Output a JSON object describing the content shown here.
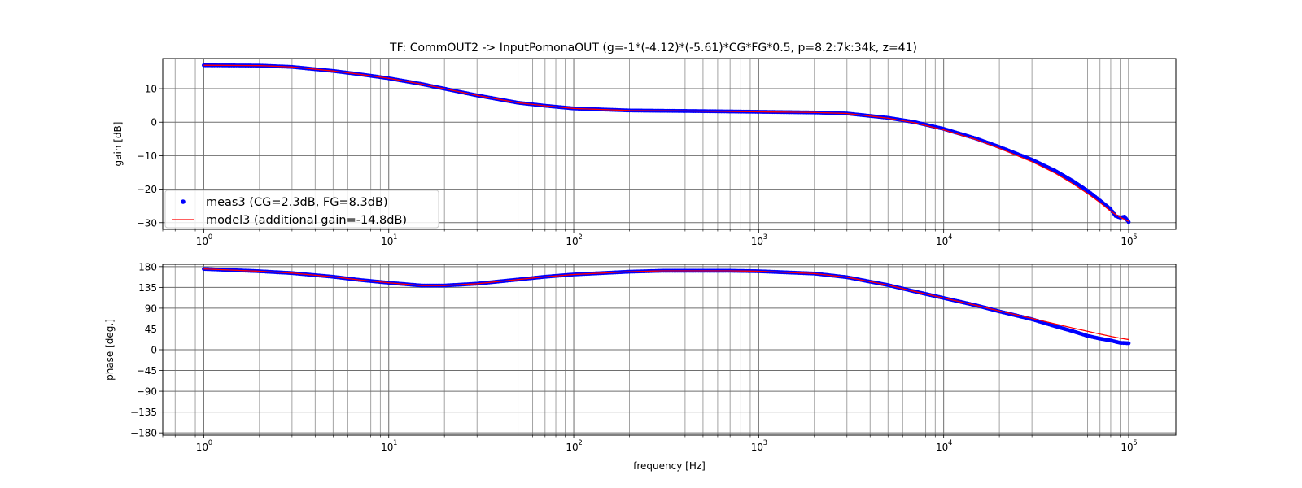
{
  "chart_data": [
    {
      "type": "line",
      "title": "TF: CommOUT2 -> InputPomonaOUT (g=-1*(-4.12)*(-5.61)*CG*FG*0.5, p=8.2:7k:34k, z=41)",
      "xlabel": "",
      "ylabel": "gain [dB]",
      "xscale": "log",
      "xlim": [
        0.6,
        180000
      ],
      "ylim": [
        -32,
        19
      ],
      "yticks": [
        10,
        0,
        -10,
        -20,
        -30
      ],
      "ytick_labels": [
        "10",
        "0",
        "−10",
        "−20",
        "−30"
      ],
      "xtick_labels": [
        "10",
        "10",
        "10",
        "10",
        "10",
        "10"
      ],
      "xtick_exponents": [
        "0",
        "1",
        "2",
        "3",
        "4",
        "5"
      ],
      "grid": true,
      "legend_position": "lower-left",
      "legend": [
        "meas3 (CG=2.3dB, FG=8.3dB)",
        "model3 (additional gain=-14.8dB)"
      ],
      "series": [
        {
          "name": "meas3 (CG=2.3dB, FG=8.3dB)",
          "style": "points",
          "color": "#0000ff",
          "x": [
            1,
            2,
            3,
            5,
            7,
            10,
            15,
            20,
            30,
            50,
            70,
            100,
            200,
            500,
            1000,
            2000,
            3000,
            5000,
            7000,
            10000,
            15000,
            20000,
            30000,
            40000,
            50000,
            60000,
            70000,
            80000,
            85000,
            90000,
            95000,
            100000
          ],
          "y": [
            17,
            16.9,
            16.5,
            15.3,
            14.3,
            13.1,
            11.4,
            10,
            8,
            5.8,
            4.9,
            4.1,
            3.5,
            3.3,
            3.1,
            2.9,
            2.6,
            1.3,
            0,
            -2,
            -4.9,
            -7.4,
            -11.2,
            -14.5,
            -17.6,
            -20.5,
            -23.4,
            -26,
            -28,
            -28.5,
            -28.2,
            -29.8
          ]
        },
        {
          "name": "model3 (additional gain=-14.8dB)",
          "style": "line",
          "color": "#ff0000",
          "x": [
            1,
            2,
            3,
            5,
            7,
            10,
            15,
            20,
            30,
            50,
            70,
            100,
            200,
            500,
            1000,
            2000,
            3000,
            5000,
            7000,
            10000,
            15000,
            20000,
            30000,
            40000,
            50000,
            60000,
            70000,
            80000,
            90000,
            100000
          ],
          "y": [
            17,
            16.9,
            16.5,
            15.3,
            14.3,
            13.1,
            11.4,
            10,
            8,
            5.8,
            4.9,
            4.1,
            3.5,
            3.3,
            3.1,
            2.9,
            2.6,
            1.2,
            -0.2,
            -2.3,
            -5.2,
            -7.8,
            -11.8,
            -15.2,
            -18.4,
            -21.3,
            -24,
            -26.6,
            -28.4,
            -29.6
          ]
        }
      ]
    },
    {
      "type": "line",
      "title": "",
      "xlabel": "frequency [Hz]",
      "ylabel": "phase [deg.]",
      "xscale": "log",
      "xlim": [
        0.6,
        180000
      ],
      "ylim": [
        -185,
        185
      ],
      "yticks": [
        180,
        135,
        90,
        45,
        0,
        -45,
        -90,
        -135,
        -180
      ],
      "ytick_labels": [
        "180",
        "135",
        "90",
        "45",
        "0",
        "−45",
        "−90",
        "−135",
        "−180"
      ],
      "xtick_labels": [
        "10",
        "10",
        "10",
        "10",
        "10",
        "10"
      ],
      "xtick_exponents": [
        "0",
        "1",
        "2",
        "3",
        "4",
        "5"
      ],
      "grid": true,
      "series": [
        {
          "style": "points",
          "color": "#0000ff",
          "x": [
            1,
            2,
            3,
            5,
            7,
            10,
            15,
            20,
            30,
            50,
            70,
            100,
            200,
            300,
            500,
            700,
            1000,
            2000,
            3000,
            5000,
            7000,
            10000,
            15000,
            20000,
            30000,
            40000,
            50000,
            60000,
            70000,
            80000,
            90000,
            100000
          ],
          "y": [
            175,
            170,
            166,
            158,
            151,
            145,
            139,
            139,
            143,
            152,
            158,
            163,
            169,
            171,
            171,
            171,
            170,
            165,
            157,
            140,
            126,
            112,
            96,
            83,
            66,
            51,
            40,
            30,
            24,
            20,
            15,
            14
          ]
        },
        {
          "style": "line",
          "color": "#ff0000",
          "x": [
            1,
            2,
            3,
            5,
            7,
            10,
            15,
            20,
            30,
            50,
            70,
            100,
            200,
            300,
            500,
            700,
            1000,
            2000,
            3000,
            5000,
            7000,
            10000,
            15000,
            20000,
            30000,
            40000,
            50000,
            60000,
            70000,
            80000,
            90000,
            100000
          ],
          "y": [
            175,
            170,
            166,
            158,
            151,
            145,
            139,
            139,
            143,
            152,
            158,
            163,
            169,
            171,
            171,
            171,
            170,
            165,
            157,
            140,
            126,
            112,
            96,
            84,
            68,
            56,
            47,
            40,
            34,
            29,
            25,
            22
          ]
        }
      ]
    }
  ]
}
